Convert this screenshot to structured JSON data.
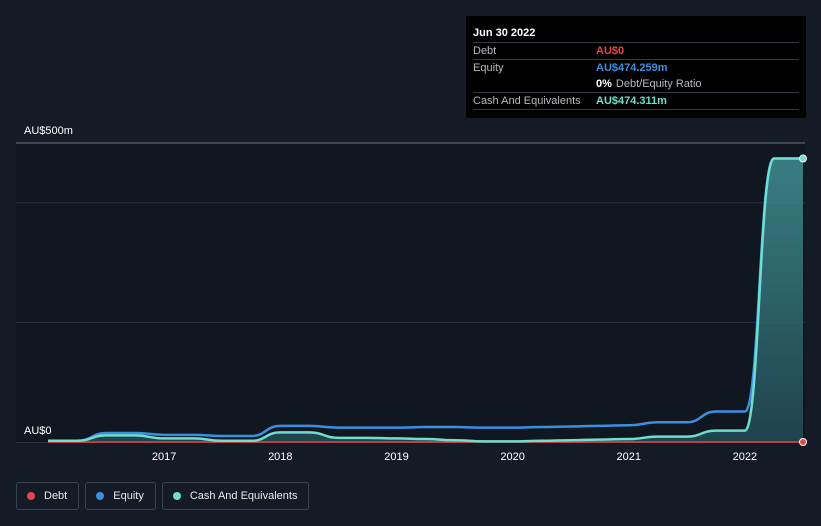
{
  "tooltip": {
    "date": "Jun 30 2022",
    "rows": [
      {
        "label": "Debt",
        "value": "AU$0",
        "color": "#e64646"
      },
      {
        "label": "Equity",
        "value": "AU$474.259m",
        "color": "#3b8fe0"
      },
      {
        "label": "",
        "value": "0%",
        "extra": "Debt/Equity Ratio",
        "color": "#ffffff"
      },
      {
        "label": "Cash And Equivalents",
        "value": "AU$474.311m",
        "color": "#6cdfcf"
      }
    ]
  },
  "legend": [
    {
      "label": "Debt",
      "color": "#e64646"
    },
    {
      "label": "Equity",
      "color": "#3b8fe0"
    },
    {
      "label": "Cash And Equivalents",
      "color": "#6cdfcf"
    }
  ],
  "chart_data": {
    "type": "area",
    "y_unit_label_top": "AU$500m",
    "y_unit_label_bottom": "AU$0",
    "ylim": [
      0,
      500
    ],
    "xlim": [
      2016.0,
      2022.5
    ],
    "x_ticks": [
      "2017",
      "2018",
      "2019",
      "2020",
      "2021",
      "2022"
    ],
    "x_tick_values": [
      2017,
      2018,
      2019,
      2020,
      2021,
      2022
    ],
    "grid": true,
    "legend_position": "bottom-left",
    "series": [
      {
        "name": "Debt",
        "color": "#e64646",
        "x": [
          2016.0,
          2022.5
        ],
        "values": [
          0,
          0
        ]
      },
      {
        "name": "Equity",
        "color": "#3b8fe0",
        "x": [
          2016.0,
          2016.25,
          2016.5,
          2016.75,
          2017.0,
          2017.25,
          2017.5,
          2017.75,
          2018.0,
          2018.25,
          2018.5,
          2018.75,
          2019.0,
          2019.25,
          2019.5,
          2019.75,
          2020.0,
          2020.25,
          2020.5,
          2020.75,
          2021.0,
          2021.25,
          2021.5,
          2021.75,
          2022.0,
          2022.25,
          2022.5
        ],
        "values": [
          2,
          2,
          15,
          15,
          12,
          12,
          10,
          10,
          27,
          27,
          24,
          24,
          24,
          25,
          25,
          24,
          24,
          25,
          26,
          27,
          28,
          33,
          33,
          51,
          51,
          474,
          474
        ]
      },
      {
        "name": "Cash And Equivalents",
        "color": "#6cdfcf",
        "x": [
          2016.0,
          2016.25,
          2016.5,
          2016.75,
          2017.0,
          2017.25,
          2017.5,
          2017.75,
          2018.0,
          2018.25,
          2018.5,
          2018.75,
          2019.0,
          2019.25,
          2019.5,
          2019.75,
          2020.0,
          2020.25,
          2020.5,
          2020.75,
          2021.0,
          2021.25,
          2021.5,
          2021.75,
          2022.0,
          2022.25,
          2022.5
        ],
        "values": [
          2,
          2,
          11,
          11,
          6,
          6,
          2,
          2,
          16,
          16,
          7,
          7,
          6,
          5,
          3,
          1,
          1,
          2,
          3,
          4,
          5,
          9,
          9,
          19,
          19,
          474,
          474
        ]
      }
    ]
  }
}
